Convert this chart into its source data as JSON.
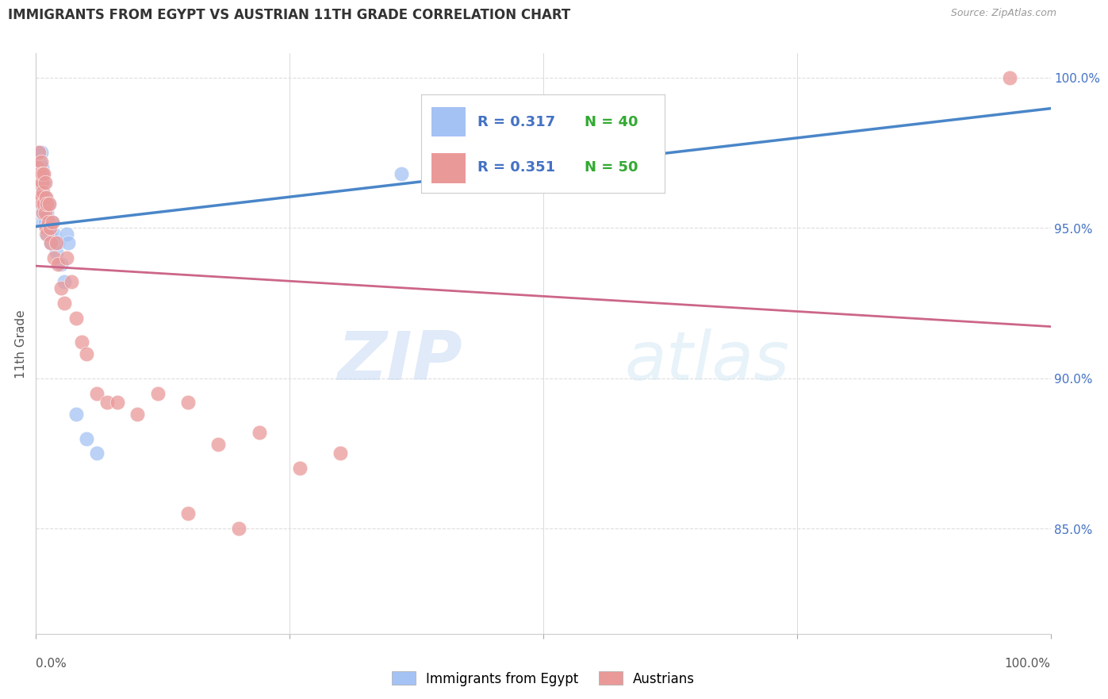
{
  "title": "IMMIGRANTS FROM EGYPT VS AUSTRIAN 11TH GRADE CORRELATION CHART",
  "source": "Source: ZipAtlas.com",
  "ylabel": "11th Grade",
  "xlim": [
    0.0,
    1.0
  ],
  "ylim": [
    0.815,
    1.008
  ],
  "yticks": [
    0.85,
    0.9,
    0.95,
    1.0
  ],
  "ytick_labels": [
    "85.0%",
    "90.0%",
    "95.0%",
    "100.0%"
  ],
  "blue_color": "#a4c2f4",
  "pink_color": "#ea9999",
  "blue_line_color": "#4a86c8",
  "pink_line_color": "#cc6688",
  "legend_text_color": "#4472c4",
  "R_blue": 0.317,
  "N_blue": 40,
  "R_pink": 0.351,
  "N_pink": 50,
  "blue_x": [
    0.002,
    0.003,
    0.003,
    0.004,
    0.004,
    0.004,
    0.005,
    0.005,
    0.005,
    0.006,
    0.006,
    0.006,
    0.007,
    0.007,
    0.007,
    0.008,
    0.008,
    0.009,
    0.009,
    0.01,
    0.01,
    0.011,
    0.012,
    0.012,
    0.013,
    0.014,
    0.015,
    0.016,
    0.018,
    0.02,
    0.022,
    0.025,
    0.028,
    0.03,
    0.032,
    0.04,
    0.05,
    0.06,
    0.36,
    0.5
  ],
  "blue_y": [
    0.975,
    0.97,
    0.965,
    0.972,
    0.96,
    0.968,
    0.975,
    0.965,
    0.958,
    0.97,
    0.962,
    0.955,
    0.968,
    0.96,
    0.952,
    0.965,
    0.958,
    0.96,
    0.952,
    0.958,
    0.948,
    0.955,
    0.958,
    0.95,
    0.952,
    0.948,
    0.945,
    0.952,
    0.948,
    0.942,
    0.945,
    0.938,
    0.932,
    0.948,
    0.945,
    0.888,
    0.88,
    0.875,
    0.968,
    0.99
  ],
  "pink_x": [
    0.002,
    0.002,
    0.003,
    0.003,
    0.004,
    0.004,
    0.005,
    0.005,
    0.006,
    0.006,
    0.006,
    0.007,
    0.007,
    0.008,
    0.008,
    0.009,
    0.009,
    0.01,
    0.01,
    0.011,
    0.011,
    0.012,
    0.013,
    0.014,
    0.015,
    0.016,
    0.018,
    0.02,
    0.022,
    0.025,
    0.028,
    0.03,
    0.035,
    0.04,
    0.045,
    0.05,
    0.06,
    0.07,
    0.08,
    0.1,
    0.12,
    0.15,
    0.18,
    0.22,
    0.26,
    0.3,
    0.15,
    0.2,
    0.55,
    0.96
  ],
  "pink_y": [
    0.97,
    0.96,
    0.975,
    0.965,
    0.968,
    0.96,
    0.972,
    0.96,
    0.965,
    0.958,
    0.968,
    0.962,
    0.955,
    0.968,
    0.958,
    0.965,
    0.955,
    0.96,
    0.95,
    0.958,
    0.948,
    0.952,
    0.958,
    0.95,
    0.945,
    0.952,
    0.94,
    0.945,
    0.938,
    0.93,
    0.925,
    0.94,
    0.932,
    0.92,
    0.912,
    0.908,
    0.895,
    0.892,
    0.892,
    0.888,
    0.895,
    0.892,
    0.878,
    0.882,
    0.87,
    0.875,
    0.855,
    0.85,
    0.978,
    1.0
  ],
  "watermark_zip": "ZIP",
  "watermark_atlas": "atlas",
  "background_color": "#ffffff",
  "grid_color": "#dddddd"
}
